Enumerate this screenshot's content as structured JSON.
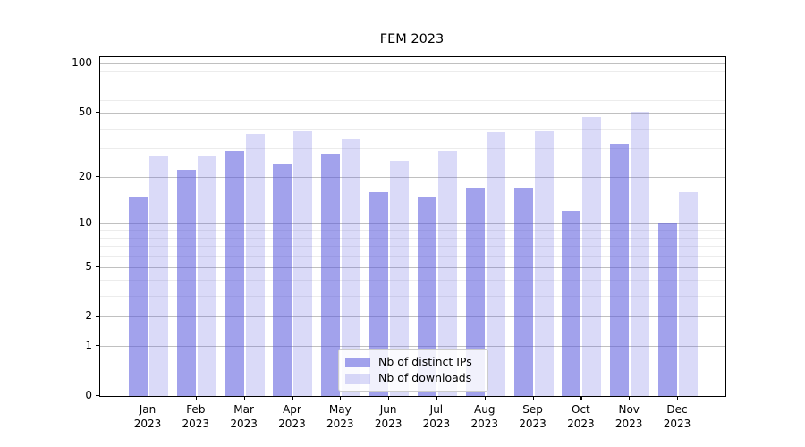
{
  "chart_data": {
    "type": "bar",
    "title": "FEM 2023",
    "categories": [
      "Jan",
      "Feb",
      "Mar",
      "Apr",
      "May",
      "Jun",
      "Jul",
      "Aug",
      "Sep",
      "Oct",
      "Nov",
      "Dec"
    ],
    "year_label": "2023",
    "series": [
      {
        "name": "Nb of distinct IPs",
        "color": "rgba(85,85,221,0.55)",
        "values": [
          15,
          22,
          29,
          24,
          28,
          16,
          15,
          17,
          17,
          12,
          32,
          10
        ]
      },
      {
        "name": "Nb of downloads",
        "color": "rgba(85,85,221,0.22)",
        "values": [
          27,
          27,
          37,
          39,
          34,
          25,
          29,
          38,
          39,
          47,
          51,
          16
        ]
      }
    ],
    "yscale": "log1p",
    "ylim": [
      0,
      109
    ],
    "yticks": [
      0,
      1,
      2,
      5,
      10,
      20,
      50,
      100
    ],
    "minor_yticks": [
      3,
      4,
      6,
      7,
      8,
      9,
      30,
      40,
      60,
      70,
      80,
      90
    ],
    "grid": true,
    "legend_position": "lower center",
    "colors": {
      "major_grid": "#c0c0c0",
      "minor_grid": "#ececec",
      "axis": "#000000"
    }
  }
}
